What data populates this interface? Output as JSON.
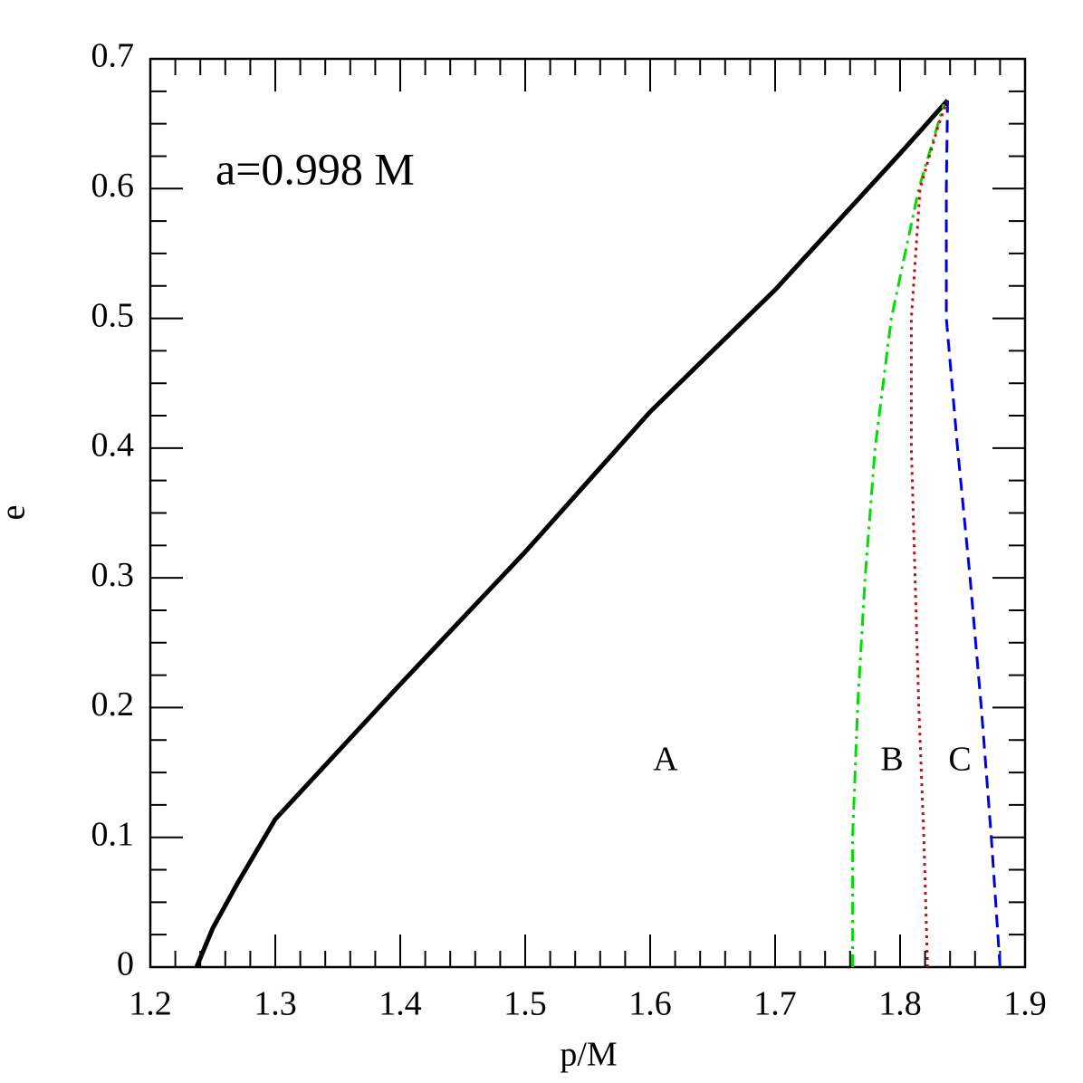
{
  "chart_data": {
    "type": "line",
    "xlabel": "p/M",
    "ylabel": "e",
    "annotations": [
      "a=0.998 M",
      "A",
      "B",
      "C"
    ],
    "xlim": [
      1.2,
      1.9
    ],
    "ylim": [
      0,
      0.7
    ],
    "xticks": [
      1.2,
      1.3,
      1.4,
      1.5,
      1.6,
      1.7,
      1.8,
      1.9
    ],
    "yticks": [
      0,
      0.1,
      0.2,
      0.3,
      0.4,
      0.5,
      0.6,
      0.7
    ],
    "x_minor_per_major": 5,
    "y_minor_per_major": 4,
    "series": [
      {
        "color": "#000000",
        "style": "solid",
        "x": [
          1.237,
          1.25,
          1.27,
          1.3,
          1.4,
          1.5,
          1.6,
          1.7,
          1.8,
          1.838
        ],
        "values": [
          0,
          0.03,
          0.065,
          0.114,
          0.218,
          0.32,
          0.428,
          0.522,
          0.627,
          0.668
        ]
      },
      {
        "color": "#00dd00",
        "style": "dashdot",
        "x": [
          1.762,
          1.762,
          1.766,
          1.772,
          1.78,
          1.793,
          1.815,
          1.835
        ],
        "values": [
          0,
          0.1,
          0.2,
          0.3,
          0.4,
          0.5,
          0.6,
          0.665
        ]
      },
      {
        "color": "#dd0000",
        "style": "dotted",
        "x": [
          1.822,
          1.819,
          1.815,
          1.812,
          1.809,
          1.809,
          1.816,
          1.831,
          1.838
        ],
        "values": [
          0,
          0.1,
          0.2,
          0.3,
          0.4,
          0.5,
          0.6,
          0.65,
          0.668
        ]
      },
      {
        "color": "#0000dd",
        "style": "dashed",
        "x": [
          1.88,
          1.873,
          1.865,
          1.856,
          1.846,
          1.837,
          1.837,
          1.838
        ],
        "values": [
          0,
          0.1,
          0.2,
          0.3,
          0.4,
          0.5,
          0.6,
          0.668
        ]
      }
    ]
  }
}
